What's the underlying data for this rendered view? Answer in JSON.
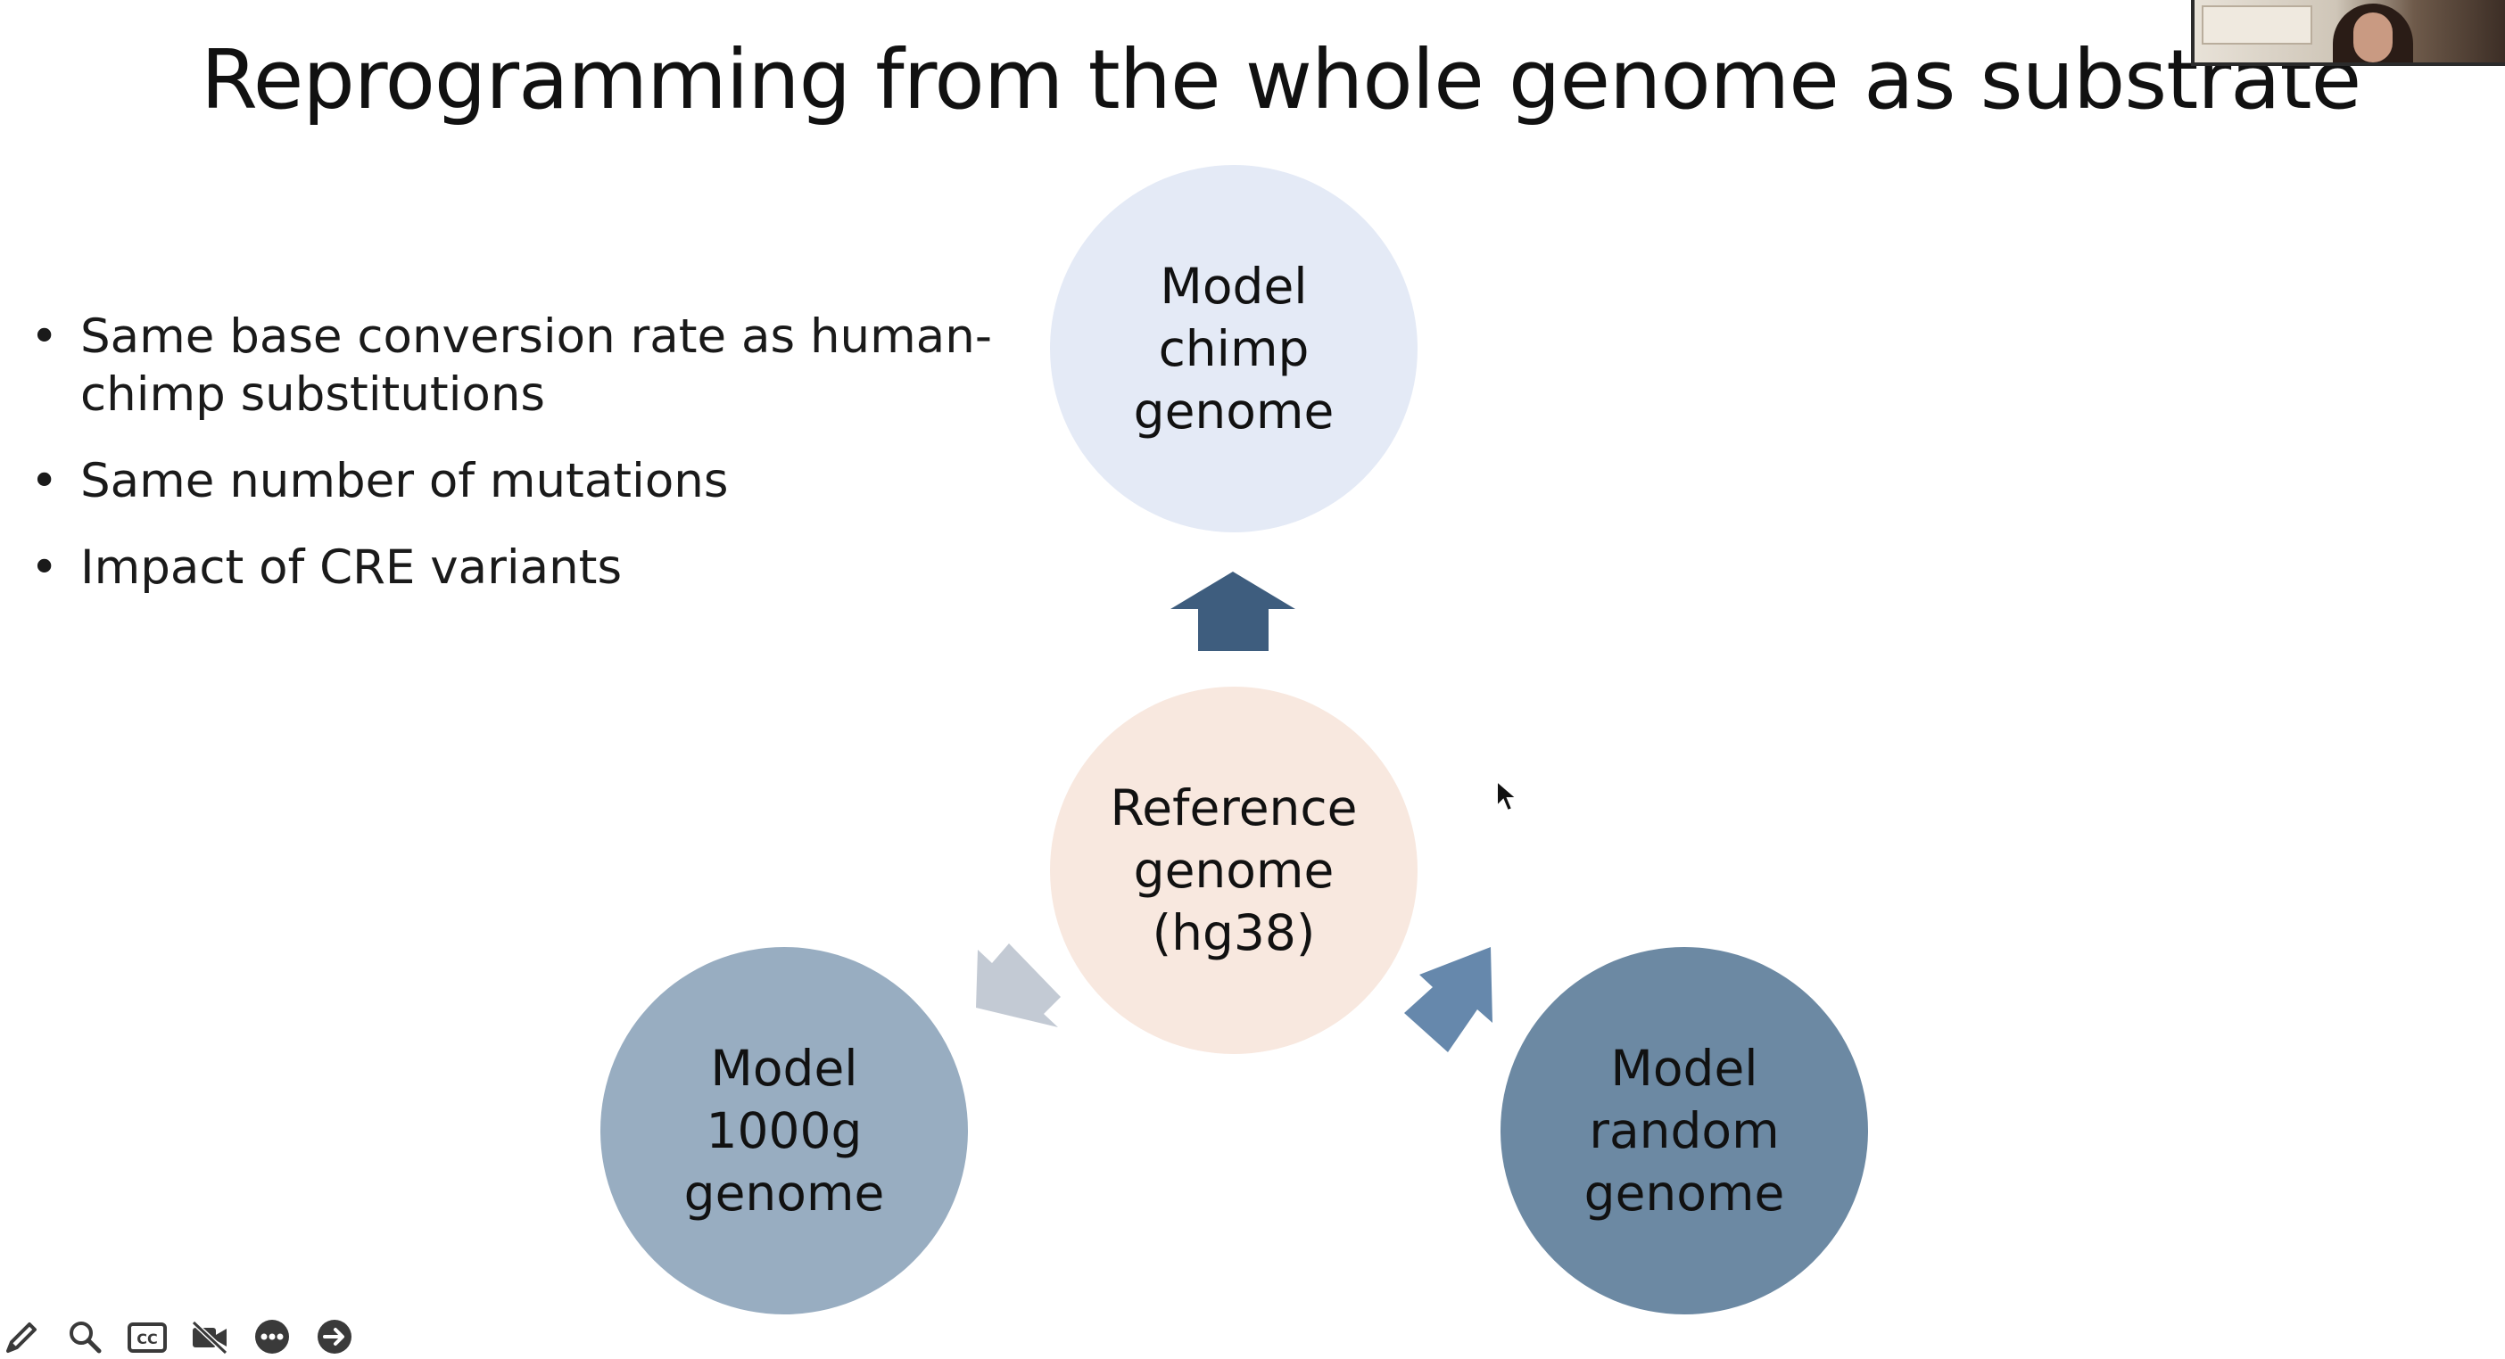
{
  "slide": {
    "title": "Reprogramming from the whole genome as substrate",
    "bullets": [
      "Same base conversion rate as human-chimp substitutions",
      "Same number of mutations",
      "Impact of CRE variants"
    ]
  },
  "diagram": {
    "center": {
      "label": "Reference\ngenome\n(hg38)",
      "color": "#f8e8df"
    },
    "top": {
      "label": "Model\nchimp\ngenome",
      "color": "#e4eaf6"
    },
    "bottom_left": {
      "label": "Model\n1000g\ngenome",
      "color": "#98adc1"
    },
    "bottom_right": {
      "label": "Model\nrandom\ngenome",
      "color": "#6c89a3"
    },
    "arrow_colors": {
      "up": "#3e5d7e",
      "down_left": "#c3cad4",
      "down_right": "#6688ac"
    }
  },
  "toolbar": {
    "icons": [
      "pen-icon",
      "search-icon",
      "closed-captions-icon",
      "video-off-icon",
      "more-icon",
      "next-arrow-icon"
    ],
    "cc_text": "CC"
  }
}
